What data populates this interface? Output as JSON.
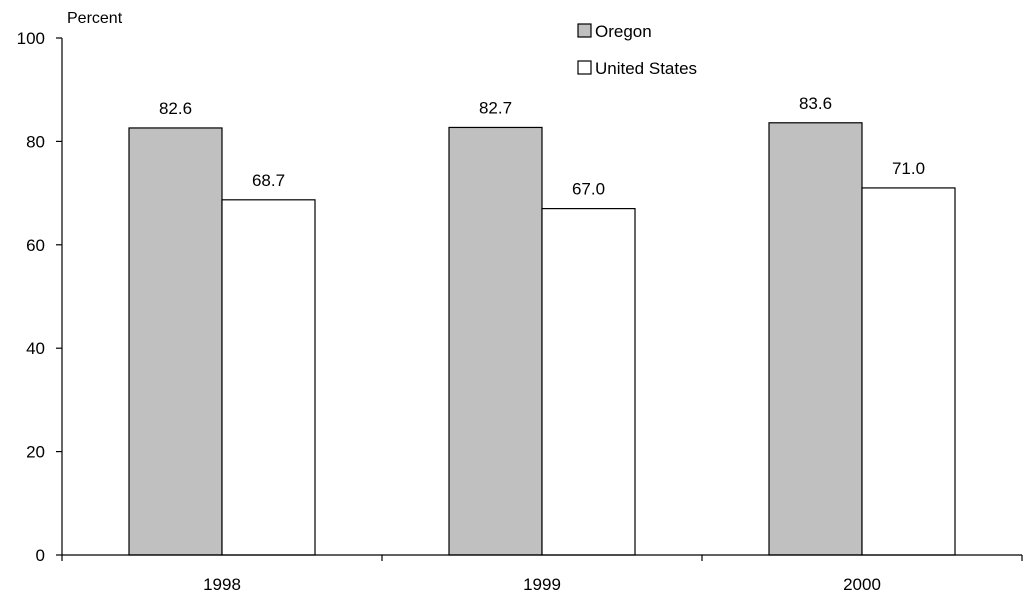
{
  "chart_data": {
    "type": "bar",
    "ylabel": "Percent",
    "xlabel": "",
    "categories": [
      "1998",
      "1999",
      "2000"
    ],
    "series": [
      {
        "name": "Oregon",
        "values": [
          82.6,
          82.7,
          83.6
        ],
        "color": "#c0c0c0"
      },
      {
        "name": "United States",
        "values": [
          68.7,
          67.0,
          71.0
        ],
        "color": "#ffffff"
      }
    ],
    "value_labels": [
      [
        "82.6",
        "82.7",
        "83.6"
      ],
      [
        "68.7",
        "67.0",
        "71.0"
      ]
    ],
    "ylim": [
      0,
      100
    ],
    "yticks": [
      0,
      20,
      40,
      60,
      80,
      100
    ],
    "grid": false,
    "legend": "top-center"
  }
}
